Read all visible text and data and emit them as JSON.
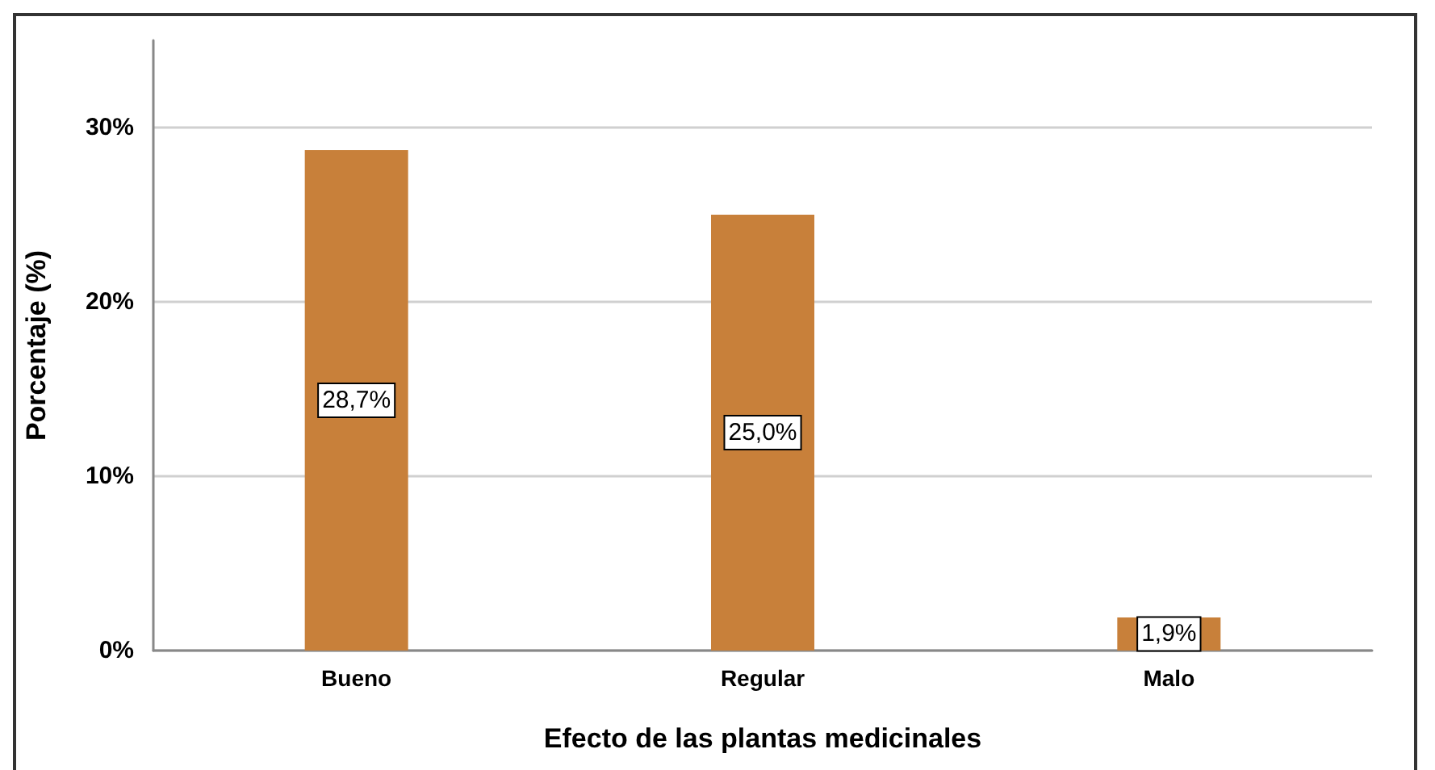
{
  "chart_data": {
    "type": "bar",
    "xlabel": "Efecto de las plantas medicinales",
    "ylabel": "Porcentaje (%)",
    "categories": [
      "Bueno",
      "Regular",
      "Malo"
    ],
    "values": [
      28.7,
      25.0,
      1.9
    ],
    "color": "#c8803a",
    "value_labels": [
      "28,7%",
      "25,0%",
      "1,9%"
    ],
    "ylim": [
      0,
      35
    ],
    "yticks": [
      {
        "value": 0,
        "label": "0%"
      },
      {
        "value": 10,
        "label": "10%"
      },
      {
        "value": 20,
        "label": "20%"
      },
      {
        "value": 30,
        "label": "30%"
      }
    ],
    "grid": "y"
  }
}
